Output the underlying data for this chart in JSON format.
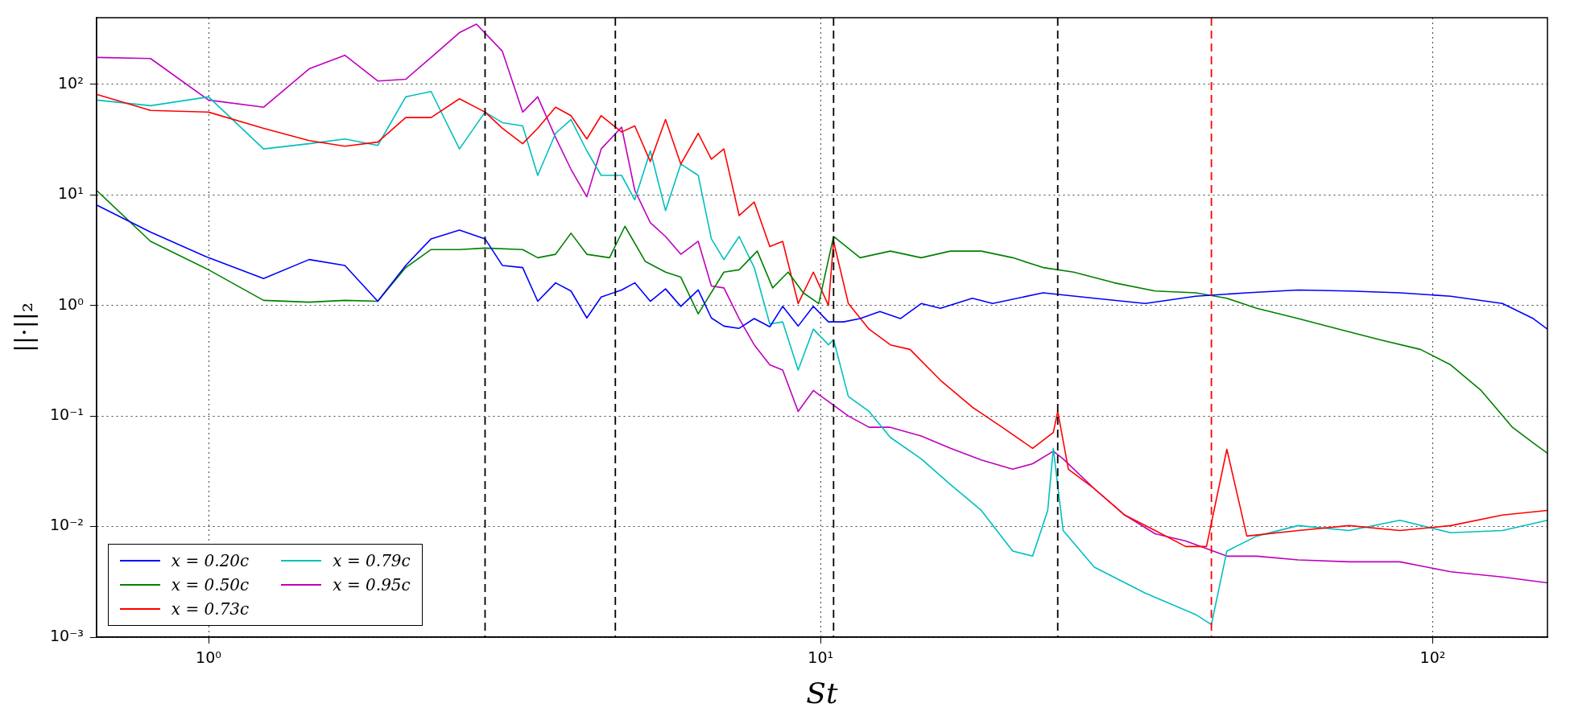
{
  "chart_data": {
    "type": "line",
    "xlabel": "St",
    "ylabel": "||·||₂",
    "log": "xy",
    "grid": true,
    "legend": "bottom left",
    "marker": "none",
    "line_style": "solid",
    "xlim": [
      0.656,
      154
    ],
    "ylim": [
      0.001,
      400
    ],
    "xticks": [
      {
        "value": 1,
        "label": "10⁰"
      },
      {
        "value": 10,
        "label": "10¹"
      },
      {
        "value": 100,
        "label": "10²"
      }
    ],
    "yticks": [
      {
        "value": 0.001,
        "label": "10⁻³"
      },
      {
        "value": 0.01,
        "label": "10⁻²"
      },
      {
        "value": 0.1,
        "label": "10⁻¹"
      },
      {
        "value": 1,
        "label": "10⁰"
      },
      {
        "value": 10,
        "label": "10¹"
      },
      {
        "value": 100,
        "label": "10²"
      }
    ],
    "ref_lines": [
      {
        "axis": "x",
        "value": 2.83,
        "color": "#000000",
        "line_style": "dashed"
      },
      {
        "axis": "x",
        "value": 4.62,
        "color": "#000000",
        "line_style": "dashed"
      },
      {
        "axis": "x",
        "value": 10.5,
        "color": "#000000",
        "line_style": "dashed"
      },
      {
        "axis": "x",
        "value": 24.4,
        "color": "#000000",
        "line_style": "dashed"
      },
      {
        "axis": "x",
        "value": 43.5,
        "color": "#ff0000",
        "line_style": "dashed"
      }
    ],
    "series": [
      {
        "name": "x = 0.20c",
        "color": "#0000ff",
        "x": [
          0.656,
          0.804,
          1,
          1.23,
          1.46,
          1.67,
          1.89,
          2.1,
          2.31,
          2.57,
          2.83,
          3.02,
          3.26,
          3.45,
          3.69,
          3.91,
          4.15,
          4.38,
          4.73,
          4.97,
          5.27,
          5.58,
          5.91,
          6.31,
          6.63,
          6.95,
          7.36,
          7.79,
          8.26,
          8.67,
          9.19,
          9.73,
          10.3,
          10.9,
          11.6,
          12.5,
          13.5,
          14.6,
          15.7,
          17.7,
          19.1,
          23.1,
          28.0,
          33.9,
          41.0,
          49.7,
          60.3,
          73.0,
          88.4,
          107,
          130,
          146,
          154
        ],
        "values": [
          8.1,
          4.6,
          2.7,
          1.75,
          2.6,
          2.3,
          1.09,
          2.3,
          4.0,
          4.8,
          4.0,
          2.3,
          2.2,
          1.09,
          1.6,
          1.35,
          0.77,
          1.19,
          1.38,
          1.6,
          1.09,
          1.41,
          0.98,
          1.38,
          0.77,
          0.65,
          0.62,
          0.76,
          0.64,
          0.98,
          0.65,
          0.98,
          0.71,
          0.71,
          0.76,
          0.88,
          0.76,
          1.04,
          0.94,
          1.16,
          1.04,
          1.3,
          1.16,
          1.04,
          1.21,
          1.3,
          1.38,
          1.35,
          1.3,
          1.21,
          1.04,
          0.76,
          0.61
        ]
      },
      {
        "name": "x = 0.50c",
        "color": "#008000",
        "x": [
          0.656,
          0.804,
          1,
          1.23,
          1.46,
          1.67,
          1.89,
          2.1,
          2.31,
          2.57,
          2.83,
          3.26,
          3.45,
          3.69,
          3.91,
          4.15,
          4.52,
          4.79,
          5.17,
          5.58,
          5.91,
          6.31,
          6.95,
          7.36,
          7.88,
          8.35,
          8.85,
          9.37,
          9.93,
          10.5,
          11.6,
          13.0,
          14.6,
          16.3,
          18.3,
          20.6,
          23.1,
          25.9,
          30.2,
          35.2,
          41.0,
          46.1,
          51.6,
          60.3,
          70.3,
          81.9,
          95.5,
          107,
          120,
          135,
          146,
          154
        ],
        "values": [
          11,
          3.8,
          2.1,
          1.11,
          1.07,
          1.11,
          1.09,
          2.2,
          3.2,
          3.2,
          3.3,
          3.2,
          2.7,
          2.9,
          4.5,
          2.9,
          2.7,
          5.2,
          2.5,
          2.0,
          1.8,
          0.84,
          2.0,
          2.1,
          3.1,
          1.44,
          2.0,
          1.3,
          1.04,
          4.2,
          2.7,
          3.1,
          2.7,
          3.1,
          3.1,
          2.7,
          2.2,
          2.0,
          1.6,
          1.35,
          1.3,
          1.16,
          0.94,
          0.76,
          0.61,
          0.49,
          0.4,
          0.29,
          0.17,
          0.079,
          0.057,
          0.046
        ]
      },
      {
        "name": "x = 0.73c",
        "color": "#ff0000",
        "x": [
          0.656,
          0.804,
          1,
          1.23,
          1.46,
          1.67,
          1.89,
          2.1,
          2.31,
          2.57,
          2.83,
          3.02,
          3.26,
          3.45,
          3.69,
          3.91,
          4.15,
          4.38,
          4.73,
          4.97,
          5.27,
          5.58,
          5.91,
          6.31,
          6.63,
          6.95,
          7.36,
          7.79,
          8.26,
          8.67,
          9.19,
          9.73,
          10.3,
          10.5,
          11.1,
          12.0,
          13.0,
          14.0,
          15.7,
          17.7,
          19.8,
          22.2,
          24.0,
          24.4,
          25.4,
          28.0,
          31.4,
          35.2,
          39.5,
          42.7,
          46.1,
          49.7,
          60.3,
          73.0,
          88.4,
          107,
          130,
          154
        ],
        "values": [
          81,
          58,
          56,
          40,
          31,
          27.5,
          30,
          50,
          50,
          74,
          56,
          40,
          29,
          40,
          62,
          52,
          32,
          52,
          37,
          42,
          20,
          48,
          19,
          36,
          21,
          26,
          6.5,
          8.6,
          3.4,
          3.8,
          1.04,
          2.0,
          1.0,
          3.8,
          1.04,
          0.61,
          0.44,
          0.4,
          0.21,
          0.12,
          0.079,
          0.051,
          0.071,
          0.11,
          0.033,
          0.022,
          0.0127,
          0.0092,
          0.0066,
          0.0066,
          0.05,
          0.0082,
          0.0092,
          0.0102,
          0.0092,
          0.0102,
          0.0127,
          0.014
        ]
      },
      {
        "name": "x = 0.79c",
        "color": "#00bfbf",
        "x": [
          0.656,
          0.804,
          1,
          1.23,
          1.46,
          1.67,
          1.89,
          2.1,
          2.31,
          2.57,
          2.83,
          3.02,
          3.26,
          3.45,
          3.69,
          3.91,
          4.15,
          4.38,
          4.73,
          4.97,
          5.27,
          5.58,
          5.91,
          6.31,
          6.63,
          6.95,
          7.36,
          7.79,
          8.26,
          8.67,
          9.19,
          9.73,
          10.3,
          10.5,
          11.1,
          12.0,
          13.0,
          14.6,
          16.3,
          18.3,
          20.6,
          22.2,
          23.5,
          24.0,
          24.9,
          28.0,
          33.9,
          41.0,
          43.5,
          46.1,
          51.6,
          60.3,
          73.0,
          88.4,
          107,
          130,
          154
        ],
        "values": [
          72,
          64,
          77,
          26,
          29,
          32,
          28,
          77,
          86,
          26,
          56,
          45,
          42,
          15,
          36,
          48,
          25,
          15,
          15,
          9.0,
          25,
          7.2,
          19,
          15,
          4.0,
          2.6,
          4.2,
          2.2,
          0.68,
          0.71,
          0.26,
          0.61,
          0.44,
          0.49,
          0.15,
          0.11,
          0.064,
          0.041,
          0.024,
          0.014,
          0.006,
          0.0054,
          0.014,
          0.051,
          0.0092,
          0.0043,
          0.0025,
          0.0016,
          0.0013,
          0.006,
          0.0082,
          0.0102,
          0.0092,
          0.0114,
          0.0088,
          0.0092,
          0.0114
        ]
      },
      {
        "name": "x = 0.95c",
        "color": "#bf00bf",
        "x": [
          0.656,
          0.804,
          1,
          1.23,
          1.46,
          1.67,
          1.89,
          2.1,
          2.31,
          2.57,
          2.74,
          3.02,
          3.26,
          3.45,
          3.69,
          3.91,
          4.15,
          4.38,
          4.73,
          4.97,
          5.27,
          5.58,
          5.91,
          6.31,
          6.63,
          6.95,
          7.36,
          7.79,
          8.26,
          8.67,
          9.19,
          9.73,
          10.3,
          11.1,
          12.0,
          13.0,
          14.6,
          16.3,
          18.3,
          20.6,
          22.2,
          24.0,
          24.9,
          28.0,
          31.4,
          35.2,
          39.5,
          46.1,
          51.6,
          60.3,
          73.0,
          88.4,
          107,
          130,
          154
        ],
        "values": [
          175,
          171,
          72,
          62,
          138,
          183,
          107,
          111,
          175,
          293,
          350,
          199,
          56,
          77,
          33,
          17,
          9.6,
          26,
          41,
          11,
          5.6,
          4.2,
          2.9,
          3.8,
          1.5,
          1.44,
          0.76,
          0.44,
          0.29,
          0.26,
          0.11,
          0.17,
          0.135,
          0.1,
          0.079,
          0.079,
          0.066,
          0.051,
          0.04,
          0.033,
          0.037,
          0.048,
          0.041,
          0.022,
          0.0127,
          0.0086,
          0.0074,
          0.0054,
          0.0054,
          0.005,
          0.0048,
          0.0048,
          0.0039,
          0.0035,
          0.0031
        ]
      }
    ]
  }
}
